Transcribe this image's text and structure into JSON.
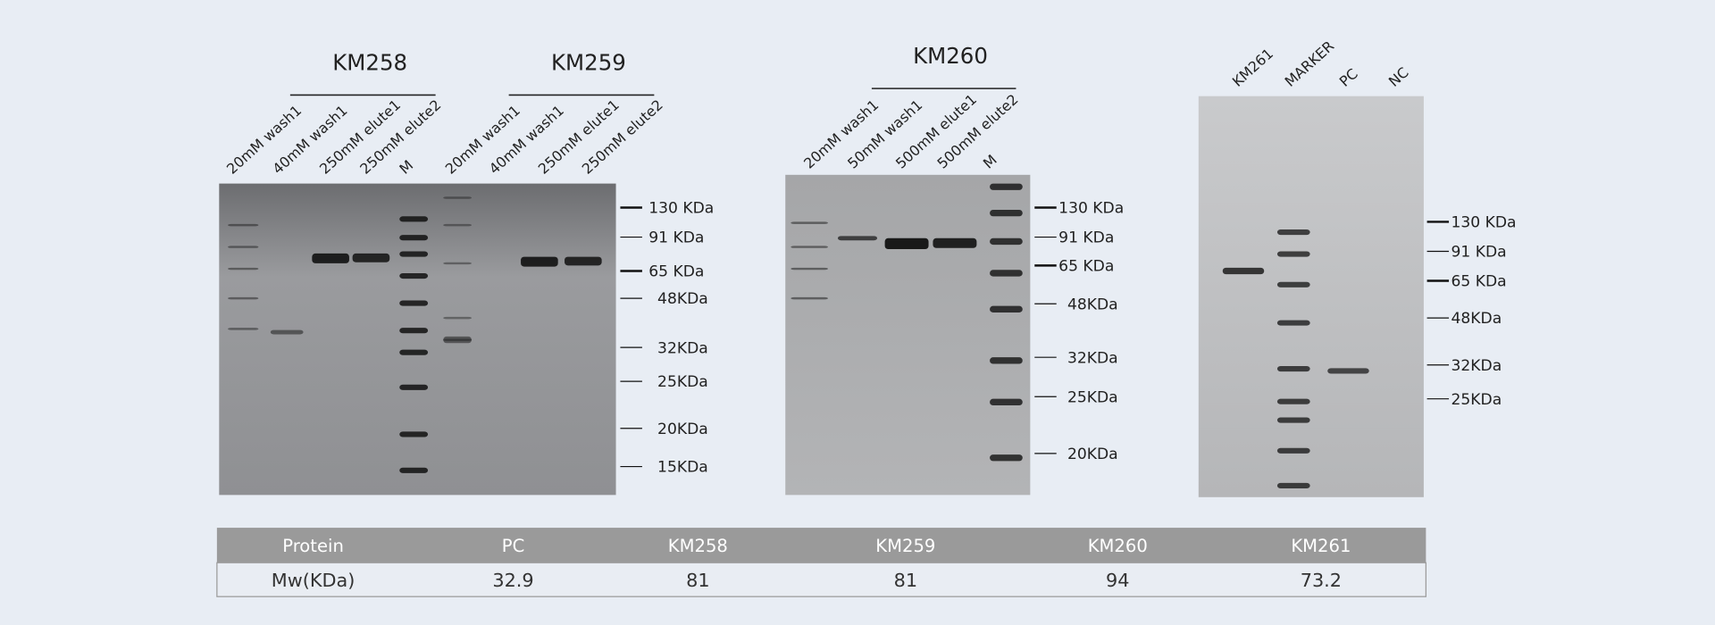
{
  "gels": [
    {
      "groups": [
        "KM258",
        "KM259"
      ],
      "lanes": [
        "20mM wash1",
        "40mM wash1",
        "250mM elute1",
        "250mM elute2",
        "M",
        "20mM wash1",
        "40mM wash1",
        "250mM elute1",
        "250mM elute2"
      ],
      "markers": [
        "130 KDa",
        "91 KDa",
        "65 KDa",
        "48KDa",
        "32KDa",
        "25KDa",
        "20KDa",
        "15KDa"
      ]
    },
    {
      "groups": [
        "KM260"
      ],
      "lanes": [
        "20mM wash1",
        "50mM wash1",
        "500mM elute1",
        "500mM elute2",
        "M"
      ],
      "markers": [
        "130 KDa",
        "91 KDa",
        "65 KDa",
        "48KDa",
        "32KDa",
        "25KDa",
        "20KDa"
      ]
    },
    {
      "lanes": [
        "KM261",
        "MARKER",
        "PC",
        "NC"
      ],
      "markers": [
        "130 KDa",
        "91 KDa",
        "65 KDa",
        "48KDa",
        "32KDa",
        "25KDa"
      ]
    }
  ],
  "table": {
    "header": [
      "Protein",
      "PC",
      "KM258",
      "KM259",
      "KM260",
      "KM261"
    ],
    "rows": [
      [
        "Mw(KDa)",
        32.9,
        81,
        81,
        94,
        73.2
      ]
    ]
  }
}
